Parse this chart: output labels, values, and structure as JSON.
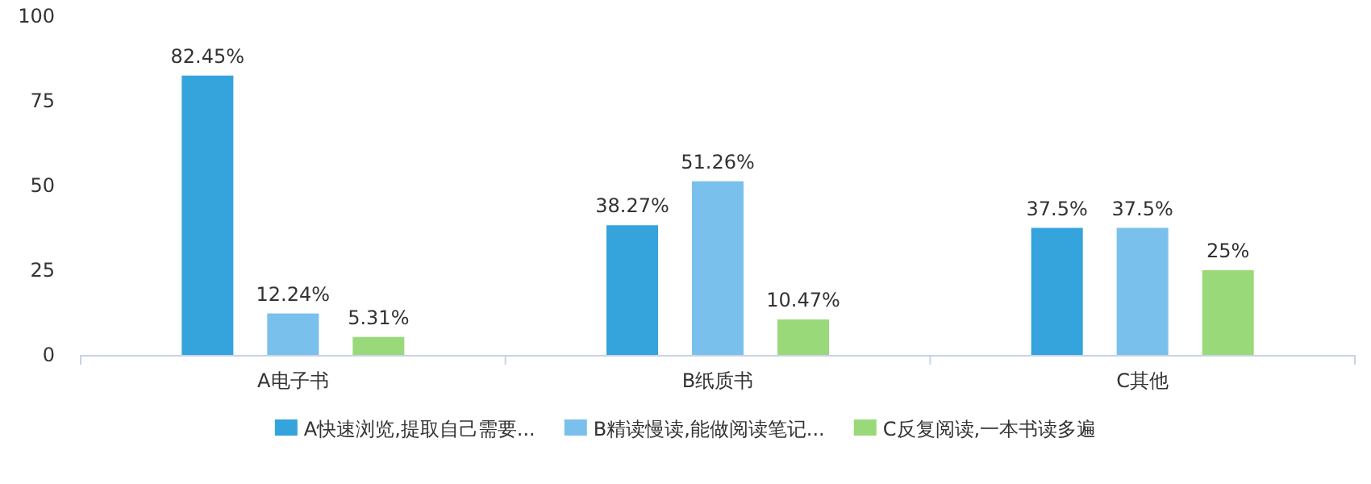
{
  "chart_data": {
    "type": "bar",
    "categories": [
      "A电子书",
      "B纸质书",
      "C其他"
    ],
    "series": [
      {
        "name": "A快速浏览,提取自己需要...",
        "color": "#35a3dc",
        "values": [
          82.45,
          38.27,
          37.5
        ],
        "value_labels": [
          "82.45%",
          "38.27%",
          "37.5%"
        ]
      },
      {
        "name": "B精读慢读,能做阅读笔记...",
        "color": "#7ac0ec",
        "values": [
          12.24,
          51.26,
          37.5
        ],
        "value_labels": [
          "12.24%",
          "51.26%",
          "37.5%"
        ]
      },
      {
        "name": "C反复阅读,一本书读多遍",
        "color": "#9ad97a",
        "values": [
          5.31,
          10.47,
          25
        ],
        "value_labels": [
          "5.31%",
          "10.47%",
          "25%"
        ]
      }
    ],
    "ylim": [
      0,
      100
    ],
    "yticks": [
      0,
      25,
      50,
      75,
      100
    ],
    "grid": false,
    "legend": "bottom"
  }
}
